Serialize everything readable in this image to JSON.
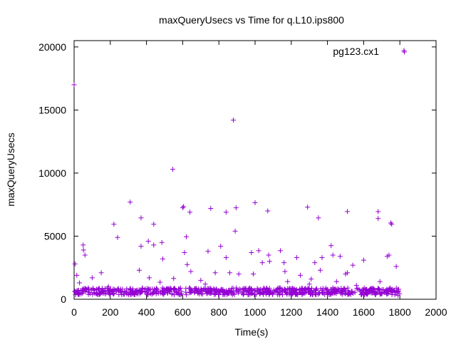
{
  "chart_data": {
    "type": "scatter",
    "title": "maxQueryUsecs vs Time for q.L10.ips800",
    "xlabel": "Time(s)",
    "ylabel": "maxQueryUsecs",
    "xlim": [
      0,
      2000
    ],
    "ylim": [
      0,
      20500
    ],
    "xticks": [
      0,
      200,
      400,
      600,
      800,
      1000,
      1200,
      1400,
      1600,
      1800,
      2000
    ],
    "yticks": [
      0,
      5000,
      10000,
      15000,
      20000
    ],
    "grid": false,
    "legend_position": "top-right",
    "marker": "plus",
    "series": [
      {
        "name": "pg123.cx1",
        "color": "#9400d3",
        "points": [
          [
            0,
            17000
          ],
          [
            5,
            2800
          ],
          [
            15,
            1900
          ],
          [
            20,
            700
          ],
          [
            30,
            1300
          ],
          [
            50,
            4300
          ],
          [
            52,
            3900
          ],
          [
            60,
            3500
          ],
          [
            100,
            1700
          ],
          [
            150,
            2100
          ],
          [
            190,
            1000
          ],
          [
            220,
            5950
          ],
          [
            240,
            4900
          ],
          [
            310,
            7700
          ],
          [
            360,
            2300
          ],
          [
            370,
            6450
          ],
          [
            370,
            4200
          ],
          [
            410,
            4600
          ],
          [
            415,
            1700
          ],
          [
            440,
            5950
          ],
          [
            440,
            4300
          ],
          [
            475,
            1350
          ],
          [
            485,
            4500
          ],
          [
            490,
            3200
          ],
          [
            545,
            10300
          ],
          [
            550,
            1650
          ],
          [
            600,
            7250
          ],
          [
            605,
            7350
          ],
          [
            610,
            3700
          ],
          [
            620,
            4950
          ],
          [
            625,
            2750
          ],
          [
            640,
            6900
          ],
          [
            645,
            2200
          ],
          [
            700,
            1500
          ],
          [
            725,
            1200
          ],
          [
            740,
            3800
          ],
          [
            755,
            7200
          ],
          [
            780,
            2100
          ],
          [
            810,
            4200
          ],
          [
            840,
            6900
          ],
          [
            840,
            3300
          ],
          [
            860,
            2100
          ],
          [
            880,
            14200
          ],
          [
            890,
            5400
          ],
          [
            895,
            7250
          ],
          [
            910,
            2000
          ],
          [
            980,
            3700
          ],
          [
            990,
            2000
          ],
          [
            1000,
            7650
          ],
          [
            1020,
            3850
          ],
          [
            1040,
            2900
          ],
          [
            1070,
            7000
          ],
          [
            1075,
            3500
          ],
          [
            1080,
            3000
          ],
          [
            1140,
            3850
          ],
          [
            1160,
            2900
          ],
          [
            1165,
            2200
          ],
          [
            1180,
            1400
          ],
          [
            1230,
            3300
          ],
          [
            1250,
            1900
          ],
          [
            1290,
            7300
          ],
          [
            1300,
            1200
          ],
          [
            1310,
            1600
          ],
          [
            1330,
            2900
          ],
          [
            1350,
            6450
          ],
          [
            1360,
            2300
          ],
          [
            1370,
            3300
          ],
          [
            1420,
            4250
          ],
          [
            1430,
            3500
          ],
          [
            1450,
            1400
          ],
          [
            1470,
            3400
          ],
          [
            1500,
            2000
          ],
          [
            1510,
            6950
          ],
          [
            1510,
            2100
          ],
          [
            1540,
            2700
          ],
          [
            1560,
            1100
          ],
          [
            1600,
            3100
          ],
          [
            1680,
            6950
          ],
          [
            1680,
            6400
          ],
          [
            1690,
            1400
          ],
          [
            1730,
            3400
          ],
          [
            1740,
            3500
          ],
          [
            1750,
            6050
          ],
          [
            1755,
            5950
          ],
          [
            1780,
            2600
          ],
          [
            1790,
            300
          ],
          [
            1825,
            19600
          ]
        ]
      }
    ],
    "dense_band": {
      "x_range": [
        0,
        1800
      ],
      "y_range": [
        350,
        900
      ],
      "count": 760
    }
  }
}
